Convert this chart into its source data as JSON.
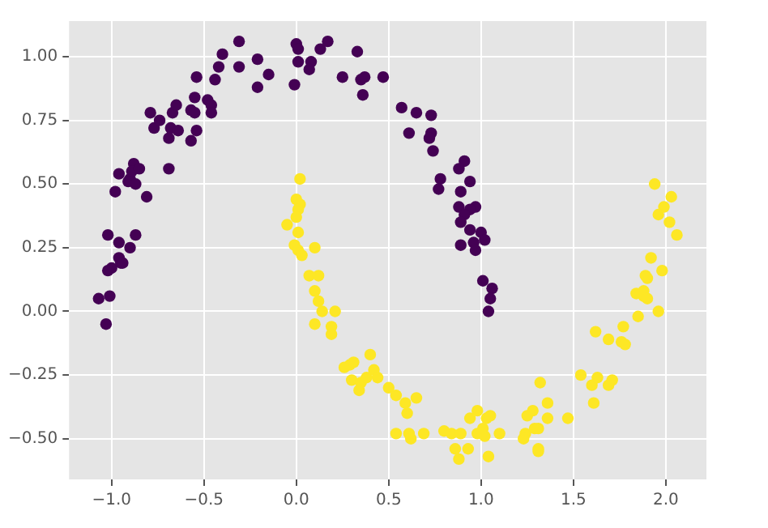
{
  "chart_data": {
    "type": "scatter",
    "grid": true,
    "marker": "circle",
    "xlim": [
      -1.23,
      2.22
    ],
    "ylim": [
      -0.66,
      1.14
    ],
    "xticks": [
      {
        "value": -1.0,
        "label": "−1.0"
      },
      {
        "value": -0.5,
        "label": "−0.5"
      },
      {
        "value": 0.0,
        "label": "0.0"
      },
      {
        "value": 0.5,
        "label": "0.5"
      },
      {
        "value": 1.0,
        "label": "1.0"
      },
      {
        "value": 1.5,
        "label": "1.5"
      },
      {
        "value": 2.0,
        "label": "2.0"
      }
    ],
    "yticks": [
      {
        "value": -0.5,
        "label": "−0.50"
      },
      {
        "value": -0.25,
        "label": "−0.25"
      },
      {
        "value": 0.0,
        "label": "0.00"
      },
      {
        "value": 0.25,
        "label": "0.25"
      },
      {
        "value": 0.5,
        "label": "0.50"
      },
      {
        "value": 0.75,
        "label": "0.75"
      },
      {
        "value": 1.0,
        "label": "1.00"
      }
    ],
    "series": [
      {
        "color": "#440154",
        "x": [
          -1.02,
          -0.96,
          -0.87,
          -0.9,
          -0.98,
          -0.96,
          -0.9,
          -0.88,
          -0.89,
          -0.85,
          -0.91,
          -0.87,
          -0.81,
          -0.79,
          -0.77,
          -0.74,
          -0.69,
          -0.68,
          -0.67,
          -0.65,
          -0.64,
          -0.69,
          -0.57,
          -0.57,
          -0.55,
          -0.54,
          -0.55,
          -0.54,
          -0.48,
          -0.46,
          -0.46,
          -0.44,
          -0.42,
          -0.4,
          -0.31,
          -0.31,
          -0.21,
          -0.21,
          -0.15,
          0.0,
          0.01,
          -0.01,
          0.01,
          0.08,
          0.07,
          0.13,
          0.17,
          0.25,
          0.33,
          0.35,
          0.36,
          0.37,
          0.47,
          -1.0,
          -1.02,
          -0.96,
          -0.95,
          -0.94,
          -1.07,
          -1.01,
          -1.03,
          0.57,
          0.65,
          0.73,
          0.61,
          0.73,
          0.72,
          0.74,
          0.91,
          0.88,
          0.94,
          0.78,
          0.77,
          0.89,
          0.88,
          0.97,
          0.94,
          0.91,
          0.89,
          0.94,
          1.0,
          0.96,
          1.02,
          0.89,
          0.97,
          1.01,
          1.06,
          1.05,
          1.04
        ],
        "values": [
          0.3,
          0.27,
          0.3,
          0.25,
          0.47,
          0.54,
          0.52,
          0.58,
          0.55,
          0.56,
          0.51,
          0.5,
          0.45,
          0.78,
          0.72,
          0.75,
          0.68,
          0.72,
          0.78,
          0.81,
          0.71,
          0.56,
          0.67,
          0.79,
          0.78,
          0.71,
          0.84,
          0.92,
          0.83,
          0.81,
          0.78,
          0.91,
          0.96,
          1.01,
          1.06,
          0.96,
          0.99,
          0.88,
          0.93,
          1.05,
          1.03,
          0.89,
          0.98,
          0.98,
          0.95,
          1.03,
          1.06,
          0.92,
          1.02,
          0.91,
          0.85,
          0.92,
          0.92,
          0.17,
          0.16,
          0.21,
          0.19,
          0.19,
          0.05,
          0.06,
          -0.05,
          0.8,
          0.78,
          0.77,
          0.7,
          0.7,
          0.68,
          0.63,
          0.59,
          0.56,
          0.51,
          0.52,
          0.48,
          0.47,
          0.41,
          0.41,
          0.4,
          0.38,
          0.35,
          0.32,
          0.31,
          0.27,
          0.28,
          0.26,
          0.24,
          0.12,
          0.09,
          0.05,
          0.0
        ]
      },
      {
        "color": "#fde725",
        "x": [
          0.02,
          0.0,
          0.02,
          0.01,
          0.0,
          -0.05,
          0.01,
          -0.01,
          0.01,
          0.03,
          0.1,
          0.07,
          0.12,
          0.1,
          0.12,
          0.14,
          0.21,
          0.1,
          0.19,
          0.19,
          0.26,
          0.29,
          0.31,
          0.4,
          0.3,
          0.35,
          0.38,
          0.42,
          0.44,
          0.34,
          0.5,
          0.54,
          0.59,
          0.65,
          0.6,
          0.54,
          0.61,
          0.62,
          0.69,
          0.8,
          0.84,
          0.89,
          0.86,
          0.88,
          0.93,
          0.98,
          0.94,
          1.03,
          1.05,
          0.98,
          1.02,
          1.01,
          1.1,
          1.04,
          1.25,
          1.28,
          1.24,
          1.23,
          1.29,
          1.31,
          1.31,
          1.31,
          1.32,
          1.36,
          1.36,
          1.47,
          1.54,
          1.6,
          1.63,
          1.61,
          1.69,
          1.71,
          1.62,
          1.69,
          1.76,
          1.78,
          1.77,
          1.85,
          1.96,
          1.84,
          1.88,
          1.88,
          1.9,
          1.89,
          1.9,
          1.92,
          1.98,
          1.94,
          2.03,
          1.99,
          1.96,
          2.02,
          2.06
        ],
        "values": [
          0.52,
          0.44,
          0.42,
          0.4,
          0.37,
          0.34,
          0.31,
          0.26,
          0.24,
          0.22,
          0.25,
          0.14,
          0.14,
          0.08,
          0.04,
          0.0,
          0.0,
          -0.05,
          -0.06,
          -0.09,
          -0.22,
          -0.21,
          -0.2,
          -0.17,
          -0.27,
          -0.28,
          -0.26,
          -0.23,
          -0.26,
          -0.31,
          -0.3,
          -0.33,
          -0.36,
          -0.34,
          -0.4,
          -0.48,
          -0.48,
          -0.5,
          -0.48,
          -0.47,
          -0.48,
          -0.48,
          -0.54,
          -0.58,
          -0.54,
          -0.39,
          -0.42,
          -0.42,
          -0.41,
          -0.48,
          -0.49,
          -0.46,
          -0.48,
          -0.57,
          -0.41,
          -0.39,
          -0.48,
          -0.5,
          -0.46,
          -0.46,
          -0.54,
          -0.55,
          -0.28,
          -0.36,
          -0.42,
          -0.42,
          -0.25,
          -0.29,
          -0.26,
          -0.36,
          -0.29,
          -0.27,
          -0.08,
          -0.11,
          -0.12,
          -0.13,
          -0.06,
          -0.02,
          0.0,
          0.07,
          0.06,
          0.08,
          0.05,
          0.14,
          0.13,
          0.21,
          0.16,
          0.5,
          0.45,
          0.41,
          0.38,
          0.35,
          0.3
        ]
      }
    ]
  }
}
